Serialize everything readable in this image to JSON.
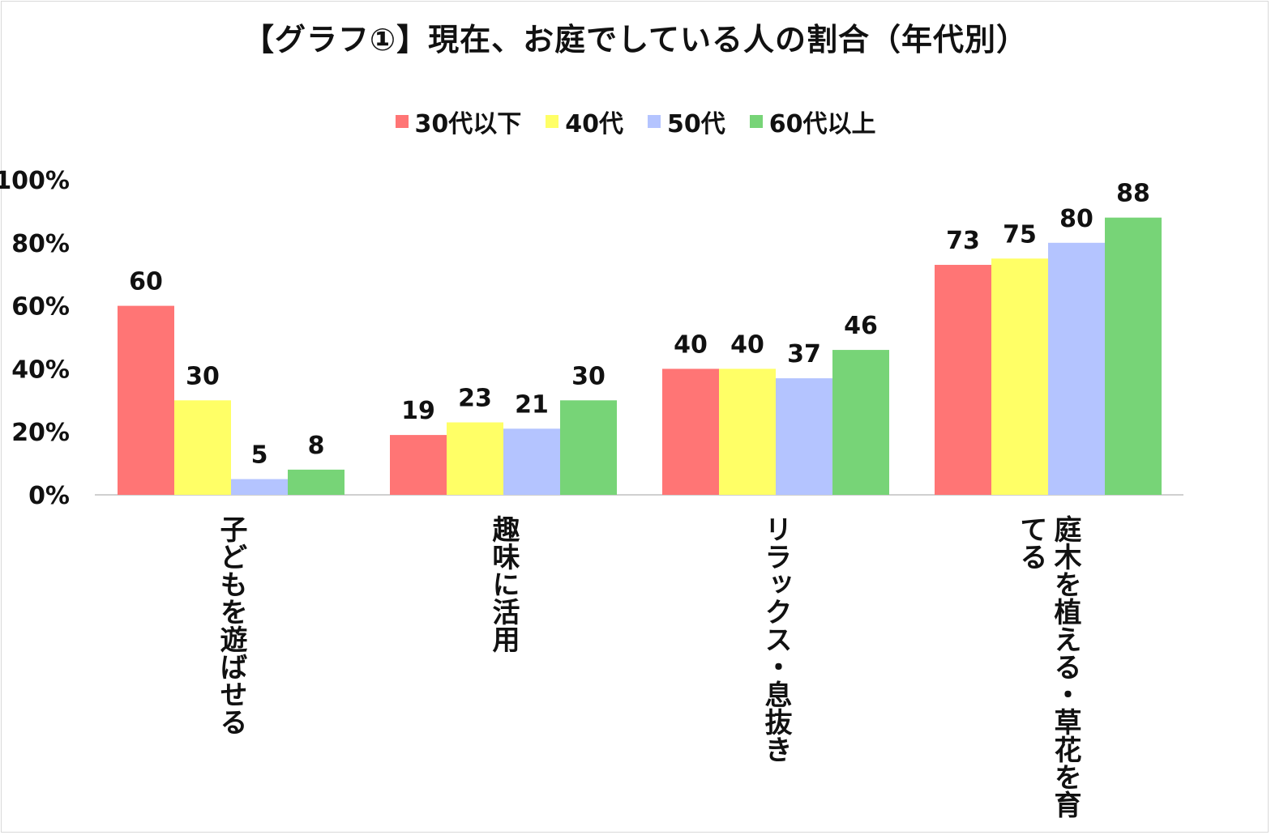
{
  "chart_data": {
    "type": "bar",
    "title": "【グラフ①】現在、お庭でしている人の割合（年代別）",
    "categories": [
      "子どもを遊ばせる",
      "趣味に活用",
      "リラックス・息抜き",
      "庭木を植える・草花を育てる"
    ],
    "series": [
      {
        "name": "30代以下",
        "color": "#ff7575",
        "values": [
          60,
          19,
          40,
          73
        ]
      },
      {
        "name": "40代",
        "color": "#ffff66",
        "values": [
          30,
          23,
          40,
          75
        ]
      },
      {
        "name": "50代",
        "color": "#b4c4ff",
        "values": [
          5,
          21,
          37,
          80
        ]
      },
      {
        "name": "60代以上",
        "color": "#77d477",
        "values": [
          8,
          30,
          46,
          88
        ]
      }
    ],
    "ylim": [
      0,
      100
    ],
    "yticks": [
      "0%",
      "20%",
      "40%",
      "60%",
      "80%",
      "100%"
    ],
    "ytick_values": [
      0,
      20,
      40,
      60,
      80,
      100
    ],
    "legend_position": "top",
    "grid": false
  }
}
